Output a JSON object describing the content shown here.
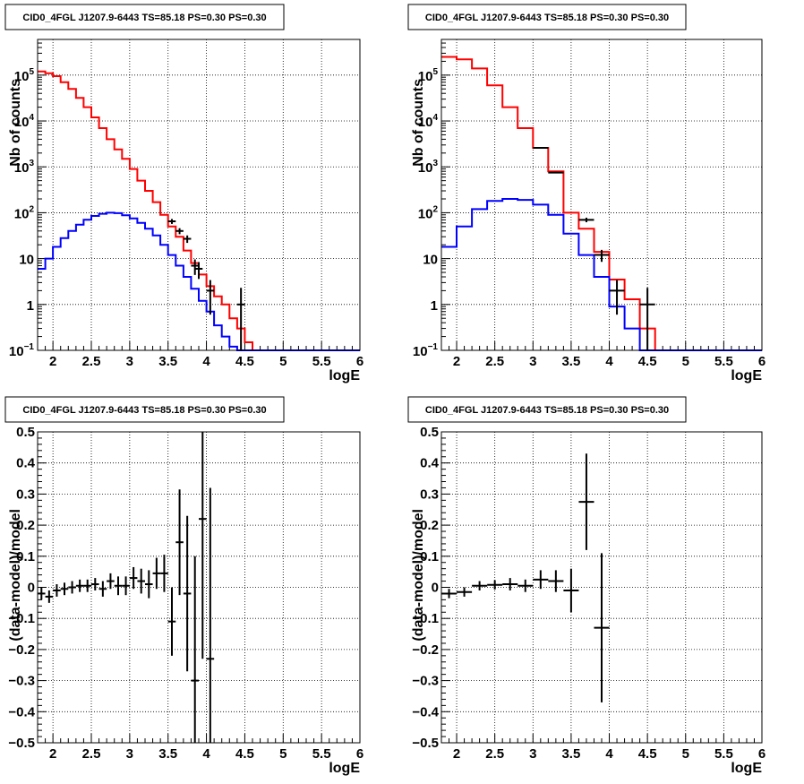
{
  "chart_data": [
    {
      "type": "line",
      "title": "CID0_4FGL J1207.9-6443 TS=85.18 PS=0.30 PS=0.30",
      "xlabel": "logE",
      "ylabel": "Nb of counts",
      "xlim": [
        1.8,
        6.0
      ],
      "ylim": [
        0.1,
        600000
      ],
      "ylog": true,
      "xticks": [
        "2",
        "2.5",
        "3",
        "3.5",
        "4",
        "4.5",
        "5",
        "5.5",
        "6"
      ],
      "yticks": [
        {
          "v": 0.1,
          "m": "10",
          "e": "−1"
        },
        {
          "v": 1,
          "m": "1",
          "e": ""
        },
        {
          "v": 10,
          "m": "10",
          "e": ""
        },
        {
          "v": 100,
          "m": "10",
          "e": "2"
        },
        {
          "v": 1000,
          "m": "10",
          "e": "3"
        },
        {
          "v": 10000,
          "m": "10",
          "e": "4"
        },
        {
          "v": 100000,
          "m": "10",
          "e": "5"
        }
      ],
      "grid": true,
      "series": [
        {
          "role": "model_total",
          "color": "#ff0000",
          "step": true,
          "edges": [
            1.8,
            1.9,
            2.0,
            2.1,
            2.2,
            2.3,
            2.4,
            2.5,
            2.6,
            2.7,
            2.8,
            2.9,
            3.0,
            3.1,
            3.2,
            3.3,
            3.4,
            3.5,
            3.6,
            3.7,
            3.8,
            3.9,
            4.0,
            4.1,
            4.2,
            4.3,
            4.4,
            4.5,
            4.6,
            4.7,
            6.0
          ],
          "values": [
            120000,
            110000,
            95000,
            70000,
            50000,
            32000,
            20000,
            12000,
            7000,
            4000,
            2400,
            1500,
            900,
            500,
            300,
            170,
            90,
            50,
            30,
            15,
            8,
            4.5,
            2.5,
            1.5,
            1.0,
            0.5,
            0.3,
            0.15,
            0.1,
            0.1
          ]
        },
        {
          "role": "model_source",
          "color": "#0000ff",
          "step": true,
          "edges": [
            1.8,
            1.9,
            2.0,
            2.1,
            2.2,
            2.3,
            2.4,
            2.5,
            2.6,
            2.7,
            2.8,
            2.9,
            3.0,
            3.1,
            3.2,
            3.3,
            3.4,
            3.5,
            3.6,
            3.7,
            3.8,
            3.9,
            4.0,
            4.1,
            4.2,
            4.3,
            4.4,
            4.5,
            4.6,
            4.7,
            6.0
          ],
          "values": [
            6,
            10,
            18,
            28,
            40,
            55,
            70,
            85,
            95,
            100,
            98,
            88,
            75,
            60,
            45,
            32,
            20,
            12,
            7,
            4,
            2.2,
            1.2,
            0.7,
            0.35,
            0.2,
            0.12,
            0.1,
            0.1,
            0.1,
            0.1
          ]
        },
        {
          "role": "data",
          "color": "#000000",
          "points": true,
          "x": [
            3.55,
            3.65,
            3.75,
            3.85,
            3.9,
            4.05,
            4.45
          ],
          "y": [
            65,
            40,
            27,
            7,
            6,
            2,
            1
          ],
          "xerr": 0.05,
          "yerr_lo": [
            8,
            6,
            5,
            2.6,
            2.4,
            1.4,
            1.0
          ],
          "yerr_hi": [
            8,
            6,
            5,
            2.6,
            2.4,
            1.4,
            1.3
          ]
        }
      ]
    },
    {
      "type": "line",
      "title": "CID0_4FGL J1207.9-6443 TS=85.18 PS=0.30 PS=0.30",
      "xlabel": "logE",
      "ylabel": "Nb of counts",
      "xlim": [
        1.8,
        6.0
      ],
      "ylim": [
        0.1,
        600000
      ],
      "ylog": true,
      "xticks": [
        "2",
        "2.5",
        "3",
        "3.5",
        "4",
        "4.5",
        "5",
        "5.5",
        "6"
      ],
      "yticks": [
        {
          "v": 0.1,
          "m": "10",
          "e": "−1"
        },
        {
          "v": 1,
          "m": "1",
          "e": ""
        },
        {
          "v": 10,
          "m": "10",
          "e": ""
        },
        {
          "v": 100,
          "m": "10",
          "e": "2"
        },
        {
          "v": 1000,
          "m": "10",
          "e": "3"
        },
        {
          "v": 10000,
          "m": "10",
          "e": "4"
        },
        {
          "v": 100000,
          "m": "10",
          "e": "5"
        }
      ],
      "grid": true,
      "series": [
        {
          "role": "model_total",
          "color": "#ff0000",
          "step": true,
          "edges": [
            1.8,
            2.0,
            2.2,
            2.4,
            2.6,
            2.8,
            3.0,
            3.2,
            3.4,
            3.6,
            3.8,
            4.0,
            4.2,
            4.4,
            4.6,
            6.0
          ],
          "values": [
            250000,
            220000,
            140000,
            60000,
            20000,
            7000,
            2600,
            800,
            100,
            45,
            14,
            3.5,
            1.3,
            0.3,
            0.1
          ]
        },
        {
          "role": "model_source",
          "color": "#0000ff",
          "step": true,
          "edges": [
            1.8,
            2.0,
            2.2,
            2.4,
            2.6,
            2.8,
            3.0,
            3.2,
            3.4,
            3.6,
            3.8,
            4.0,
            4.2,
            4.4,
            4.6,
            6.0
          ],
          "values": [
            18,
            50,
            120,
            180,
            200,
            190,
            150,
            90,
            35,
            12,
            4,
            0.9,
            0.3,
            0.1,
            0.1
          ]
        },
        {
          "role": "data",
          "color": "#000000",
          "points": true,
          "x": [
            3.1,
            3.3,
            3.7,
            3.9,
            4.1,
            4.5
          ],
          "y": [
            2600,
            750,
            70,
            12,
            2,
            1
          ],
          "xerr": 0.1,
          "yerr_lo": [
            50,
            27,
            8,
            3.5,
            1.4,
            1.0
          ],
          "yerr_hi": [
            50,
            27,
            8,
            3.5,
            1.4,
            1.3
          ]
        }
      ]
    },
    {
      "type": "scatter",
      "title": "CID0_4FGL J1207.9-6443 TS=85.18 PS=0.30 PS=0.30",
      "xlabel": "logE",
      "ylabel": "(data-model)/model",
      "xlim": [
        1.8,
        6.0
      ],
      "ylim": [
        -0.5,
        0.5
      ],
      "ylog": false,
      "xticks": [
        "2",
        "2.5",
        "3",
        "3.5",
        "4",
        "4.5",
        "5",
        "5.5",
        "6"
      ],
      "yticks": [
        "−0.5",
        "−0.4",
        "−0.3",
        "−0.2",
        "−0.1",
        "0",
        "0.1",
        "0.2",
        "0.3",
        "0.4",
        "0.5"
      ],
      "grid": true,
      "series": [
        {
          "role": "residual",
          "color": "#000000",
          "points": true,
          "x": [
            1.85,
            1.95,
            2.05,
            2.15,
            2.25,
            2.35,
            2.45,
            2.55,
            2.65,
            2.75,
            2.85,
            2.95,
            3.05,
            3.15,
            3.25,
            3.35,
            3.45,
            3.55,
            3.65,
            3.75,
            3.85,
            3.95,
            4.05
          ],
          "y": [
            -0.02,
            -0.03,
            -0.01,
            -0.005,
            0.0,
            0.005,
            0.005,
            0.01,
            -0.005,
            0.02,
            0.005,
            0.005,
            0.03,
            0.02,
            0.01,
            0.045,
            0.045,
            -0.11,
            0.145,
            -0.02,
            -0.3,
            0.22,
            -0.23
          ],
          "yerr": [
            0.02,
            0.02,
            0.02,
            0.02,
            0.02,
            0.02,
            0.02,
            0.02,
            0.025,
            0.025,
            0.03,
            0.03,
            0.035,
            0.04,
            0.045,
            0.05,
            0.06,
            0.11,
            0.17,
            0.25,
            0.4,
            0.45,
            0.55
          ],
          "xerr": 0.05
        }
      ]
    },
    {
      "type": "scatter",
      "title": "CID0_4FGL J1207.9-6443 TS=85.18 PS=0.30 PS=0.30",
      "xlabel": "logE",
      "ylabel": "(data-model)/model",
      "xlim": [
        1.8,
        6.0
      ],
      "ylim": [
        -0.5,
        0.5
      ],
      "ylog": false,
      "xticks": [
        "2",
        "2.5",
        "3",
        "3.5",
        "4",
        "4.5",
        "5",
        "5.5",
        "6"
      ],
      "yticks": [
        "−0.5",
        "−0.4",
        "−0.3",
        "−0.2",
        "−0.1",
        "0",
        "0.1",
        "0.2",
        "0.3",
        "0.4",
        "0.5"
      ],
      "grid": true,
      "series": [
        {
          "role": "residual",
          "color": "#000000",
          "points": true,
          "x": [
            1.9,
            2.1,
            2.3,
            2.5,
            2.7,
            2.9,
            3.1,
            3.3,
            3.5,
            3.7,
            3.9
          ],
          "y": [
            -0.02,
            -0.015,
            0.005,
            0.008,
            0.01,
            0.005,
            0.025,
            0.02,
            -0.01,
            0.275,
            -0.13
          ],
          "yerr": [
            0.015,
            0.015,
            0.015,
            0.015,
            0.02,
            0.02,
            0.03,
            0.035,
            0.07,
            0.155,
            0.24
          ],
          "xerr": 0.1
        }
      ]
    }
  ]
}
